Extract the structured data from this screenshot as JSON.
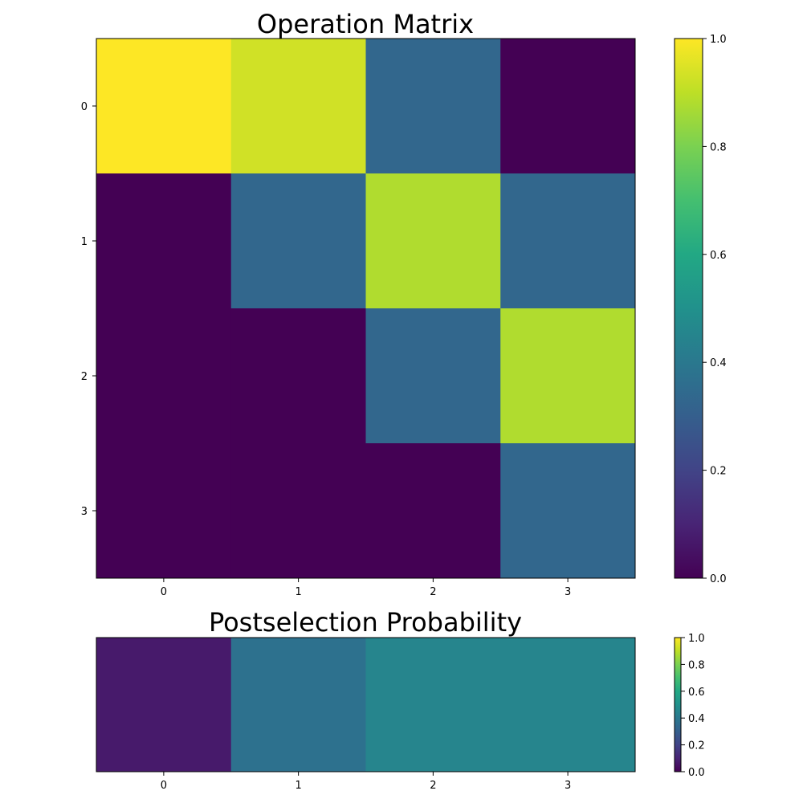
{
  "chart_data": [
    {
      "type": "heatmap",
      "title": "Operation Matrix",
      "x_ticks": [
        "0",
        "1",
        "2",
        "3"
      ],
      "y_ticks": [
        "0",
        "1",
        "2",
        "3"
      ],
      "values": [
        [
          1.0,
          0.93,
          0.33,
          0.0
        ],
        [
          0.0,
          0.33,
          0.88,
          0.33
        ],
        [
          0.0,
          0.0,
          0.33,
          0.88
        ],
        [
          0.0,
          0.0,
          0.0,
          0.33
        ]
      ],
      "colormap": "viridis",
      "vmin": 0.0,
      "vmax": 1.0,
      "colorbar_ticks": [
        "0.0",
        "0.2",
        "0.4",
        "0.6",
        "0.8",
        "1.0"
      ]
    },
    {
      "type": "heatmap",
      "title": "Postselection Probability",
      "x_ticks": [
        "0",
        "1",
        "2",
        "3"
      ],
      "y_ticks": [],
      "values": [
        [
          0.07,
          0.37,
          0.45,
          0.45
        ]
      ],
      "colormap": "viridis",
      "vmin": 0.0,
      "vmax": 1.0,
      "colorbar_ticks": [
        "0.0",
        "0.2",
        "0.4",
        "0.6",
        "0.8",
        "1.0"
      ]
    }
  ]
}
